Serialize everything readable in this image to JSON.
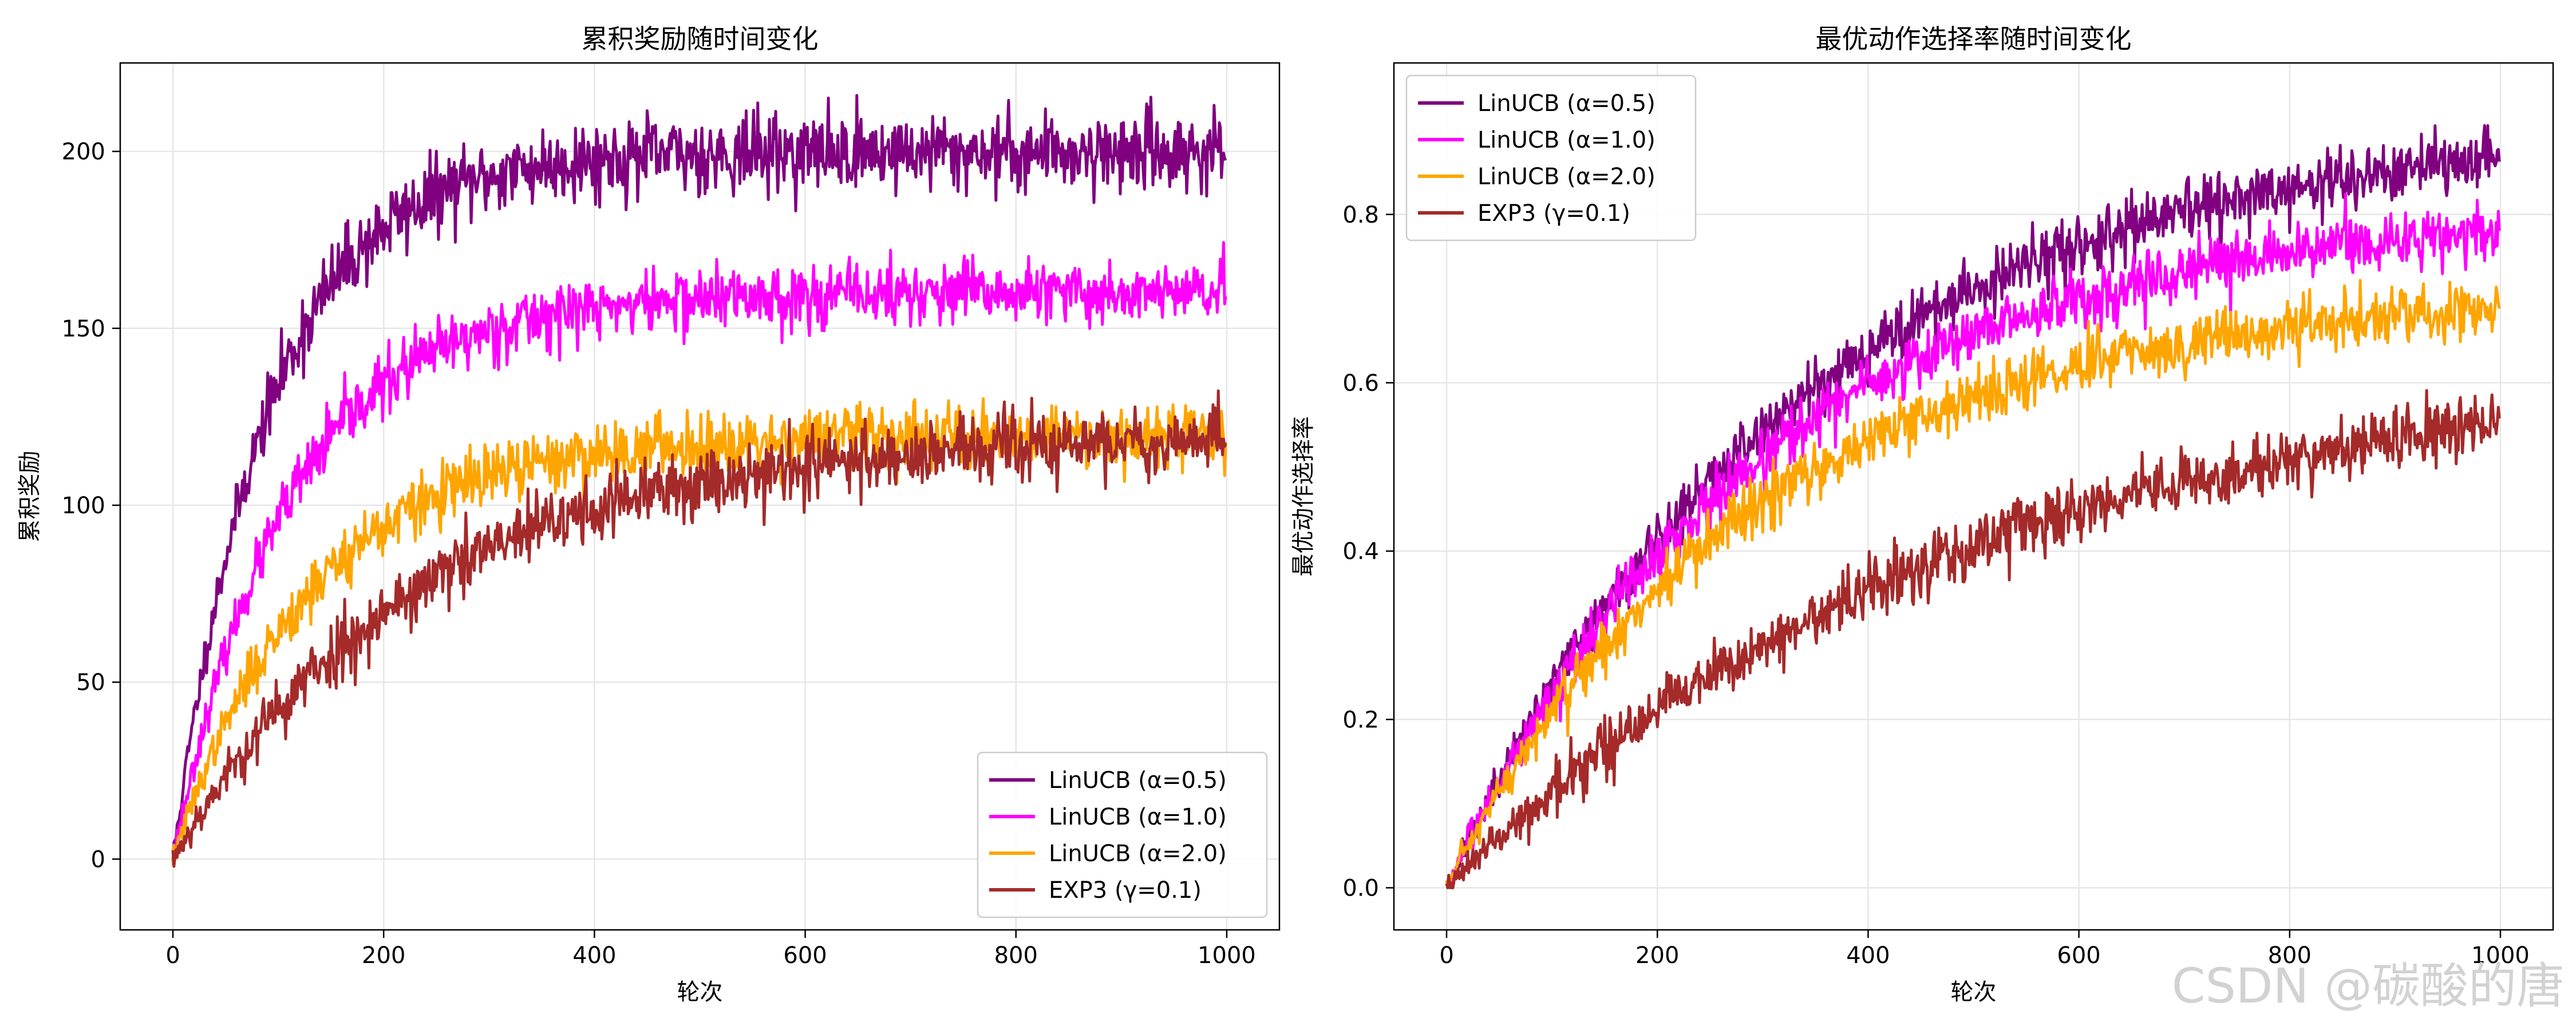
{
  "watermark": "CSDN @碳酸的唐",
  "chart_data": [
    {
      "type": "line",
      "title": "累积奖励随时间变化",
      "xlabel": "轮次",
      "ylabel": "累积奖励",
      "xlim": [
        -50,
        1050
      ],
      "ylim": [
        -20,
        225
      ],
      "xticks": [
        0,
        200,
        400,
        600,
        800,
        1000
      ],
      "yticks": [
        0,
        50,
        100,
        150,
        200
      ],
      "grid": true,
      "legend_position": "bottom-right",
      "series": [
        {
          "name": "LinUCB (α=0.5)",
          "color": "#800080",
          "plateau": 200,
          "rate": 90,
          "noise": 5.5,
          "seed": 11
        },
        {
          "name": "LinUCB (α=1.0)",
          "color": "#ff00ff",
          "plateau": 160,
          "rate": 110,
          "noise": 4.5,
          "seed": 23
        },
        {
          "name": "LinUCB (α=2.0)",
          "color": "#ffa500",
          "plateau": 120,
          "rate": 130,
          "noise": 4.5,
          "seed": 37
        },
        {
          "name": "EXP3 (γ=0.1)",
          "color": "#a52a2a",
          "plateau": 120,
          "rate": 230,
          "noise": 5.0,
          "seed": 53
        }
      ]
    },
    {
      "type": "line",
      "title": "最优动作选择率随时间变化",
      "xlabel": "轮次",
      "ylabel": "最优动作选择率",
      "xlim": [
        -50,
        1050
      ],
      "ylim": [
        -0.05,
        0.98
      ],
      "xticks": [
        0,
        200,
        400,
        600,
        800,
        1000
      ],
      "yticks": [
        0.0,
        0.2,
        0.4,
        0.6,
        0.8
      ],
      "grid": true,
      "legend_position": "top-left",
      "series": [
        {
          "name": "LinUCB (α=0.5)",
          "color": "#800080",
          "plateau": 0.91,
          "rate": 330,
          "noise": 0.018,
          "seed": 71
        },
        {
          "name": "LinUCB (α=1.0)",
          "color": "#ff00ff",
          "plateau": 0.81,
          "rate": 300,
          "noise": 0.018,
          "seed": 83
        },
        {
          "name": "LinUCB (α=2.0)",
          "color": "#ffa500",
          "plateau": 0.71,
          "rate": 290,
          "noise": 0.018,
          "seed": 97
        },
        {
          "name": "EXP3 (γ=0.1)",
          "color": "#a52a2a",
          "plateau": 0.64,
          "rate": 500,
          "noise": 0.018,
          "seed": 109
        }
      ]
    }
  ]
}
